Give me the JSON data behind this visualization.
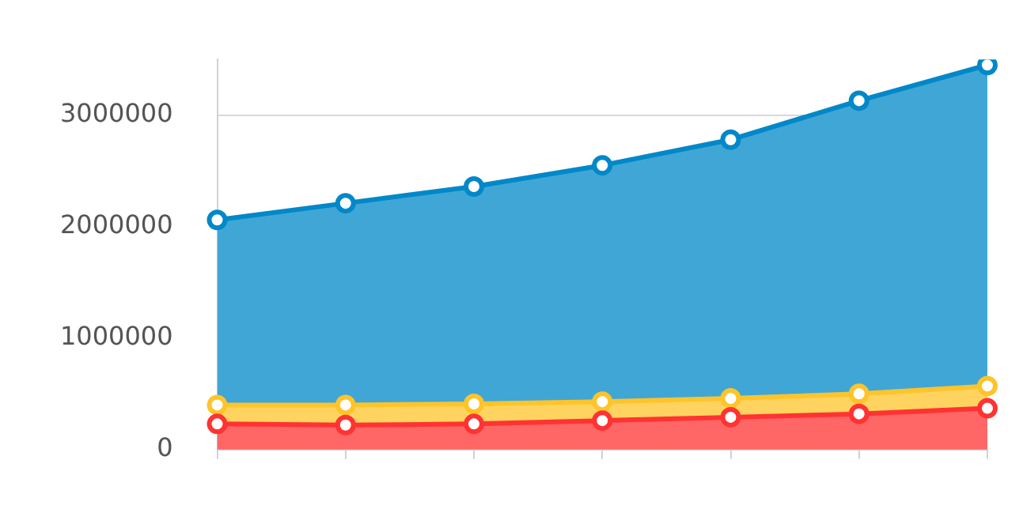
{
  "chart_data": {
    "type": "area",
    "categories": [
      null,
      null,
      null,
      null,
      null,
      null,
      null
    ],
    "series": [
      {
        "color": "#0088c8",
        "values": [
          2060000,
          2210000,
          2360000,
          2550000,
          2780000,
          3130000,
          3450000
        ]
      },
      {
        "color": "#ffc42a",
        "values": [
          400000,
          400000,
          410000,
          430000,
          460000,
          500000,
          570000
        ]
      },
      {
        "color": "#ff3333",
        "values": [
          230000,
          220000,
          230000,
          260000,
          290000,
          320000,
          370000
        ]
      }
    ],
    "ylim": [
      0,
      3500000
    ],
    "yticks": [
      0,
      1000000,
      2000000,
      3000000
    ],
    "grid": "y",
    "marker": "circle",
    "legend": false
  }
}
